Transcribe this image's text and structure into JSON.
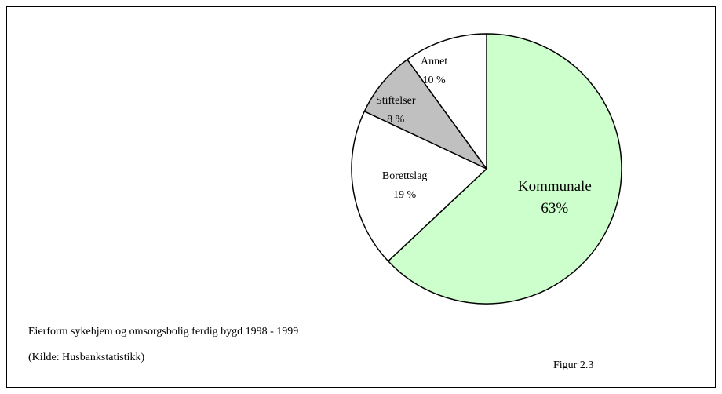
{
  "chart_data": {
    "type": "pie",
    "categories": [
      "Kommunale",
      "Borettslag",
      "Stiftelser",
      "Annet"
    ],
    "values": [
      63,
      19,
      8,
      10
    ],
    "value_labels": [
      "63%",
      "19 %",
      "8 %",
      "10 %"
    ],
    "colors": [
      "#ccffcc",
      "#ffffff",
      "#c0c0c0",
      "#ffffff"
    ],
    "caption": "Eierform sykehjem og omsorgsbolig ferdig bygd 1998 - 1999",
    "source": "(Kilde: Husbankstatistikk)",
    "figure_label": "Figur 2.3"
  }
}
